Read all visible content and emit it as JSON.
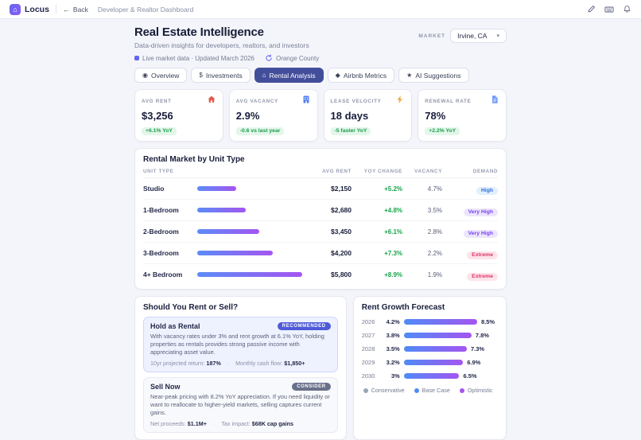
{
  "topbar": {
    "brand": "Locus",
    "logo_glyph": "⌂",
    "back_icon": "←",
    "back_label": "Back",
    "context": "Developer & Realtor Dashboard"
  },
  "header": {
    "title": "Real Estate Intelligence",
    "subtitle": "Data-driven insights for developers, realtors, and investors",
    "market_label": "MARKET",
    "market_value": "Irvine, CA",
    "market_chevron": "▾"
  },
  "status": {
    "live_text": "Live market data · Updated March 2026",
    "region": "Orange County"
  },
  "tabs": [
    {
      "label": "Overview",
      "glyph": "◉"
    },
    {
      "label": "Investments",
      "glyph": "$"
    },
    {
      "label": "Rental Analysis",
      "glyph": "⌂",
      "active": true
    },
    {
      "label": "Airbnb Metrics",
      "glyph": "◆"
    },
    {
      "label": "AI Suggestions",
      "glyph": "★"
    }
  ],
  "kpis": [
    {
      "label": "AVG RENT",
      "value": "$3,256",
      "badge": "+6.1% YoY",
      "icon": "house-icon"
    },
    {
      "label": "AVG VACANCY",
      "value": "2.9%",
      "badge": "-0.6 vs last year",
      "icon": "building-icon"
    },
    {
      "label": "LEASE VELOCITY",
      "value": "18 days",
      "badge": "-5 faster YoY",
      "icon": "lightning-icon"
    },
    {
      "label": "RENEWAL RATE",
      "value": "78%",
      "badge": "+2.2% YoY",
      "icon": "document-icon"
    }
  ],
  "table": {
    "title": "Rental Market by Unit Type",
    "columns": [
      "Unit Type",
      "Avg Rent",
      "YoY Change",
      "Vacancy",
      "Demand"
    ],
    "rows": [
      {
        "unit": "Studio",
        "rent": "$2,150",
        "yoy": "+5.2%",
        "vacancy": "4.7%",
        "demand": "High",
        "bar_pct": 37
      },
      {
        "unit": "1-Bedroom",
        "rent": "$2,680",
        "yoy": "+4.8%",
        "vacancy": "3.5%",
        "demand": "Very High",
        "bar_pct": 46
      },
      {
        "unit": "2-Bedroom",
        "rent": "$3,450",
        "yoy": "+6.1%",
        "vacancy": "2.8%",
        "demand": "Very High",
        "bar_pct": 59
      },
      {
        "unit": "3-Bedroom",
        "rent": "$4,200",
        "yoy": "+7.3%",
        "vacancy": "2.2%",
        "demand": "Extreme",
        "bar_pct": 72
      },
      {
        "unit": "4+ Bedroom",
        "rent": "$5,800",
        "yoy": "+8.9%",
        "vacancy": "1.9%",
        "demand": "Extreme",
        "bar_pct": 100
      }
    ]
  },
  "decision": {
    "title": "Should You Rent or Sell?",
    "options": [
      {
        "name": "Hold as Rental",
        "badge": "RECOMMENDED",
        "body": "With vacancy rates under 3% and rent growth at 6.1% YoY, holding properties as rentals provides strong passive income with appreciating asset value.",
        "stat1_label": "10yr projected return:",
        "stat1_value": "187%",
        "stat2_label": "Monthly cash flow:",
        "stat2_value": "$1,850+"
      },
      {
        "name": "Sell Now",
        "badge": "CONSIDER",
        "body": "Near-peak pricing with 8.2% YoY appreciation. If you need liquidity or want to reallocate to higher-yield markets, selling captures current gains.",
        "stat1_label": "Net proceeds:",
        "stat1_value": "$1.1M+",
        "stat2_label": "Tax impact:",
        "stat2_value": "$68K cap gains"
      }
    ]
  },
  "forecast": {
    "title": "Rent Growth Forecast",
    "rows": [
      {
        "year": "2026",
        "low": "4.2%",
        "high": "8.5%",
        "bar_pct": 78
      },
      {
        "year": "2027",
        "low": "3.8%",
        "high": "7.8%",
        "bar_pct": 72
      },
      {
        "year": "2028",
        "low": "3.5%",
        "high": "7.3%",
        "bar_pct": 67
      },
      {
        "year": "2029",
        "low": "3.2%",
        "high": "6.9%",
        "bar_pct": 63
      },
      {
        "year": "2030",
        "low": "3%",
        "high": "6.5%",
        "bar_pct": 59
      }
    ],
    "legend": [
      {
        "label": "Conservative",
        "color": "#9aa5b8"
      },
      {
        "label": "Base Case",
        "color": "#4f8bf7"
      },
      {
        "label": "Optimistic",
        "color": "#a455f0"
      }
    ]
  },
  "colors": {
    "accent": "#434e9b",
    "positive": "#1a9e4b",
    "bar_gradient_start": "#5b8cf7",
    "bar_gradient_end": "#a455f0"
  }
}
